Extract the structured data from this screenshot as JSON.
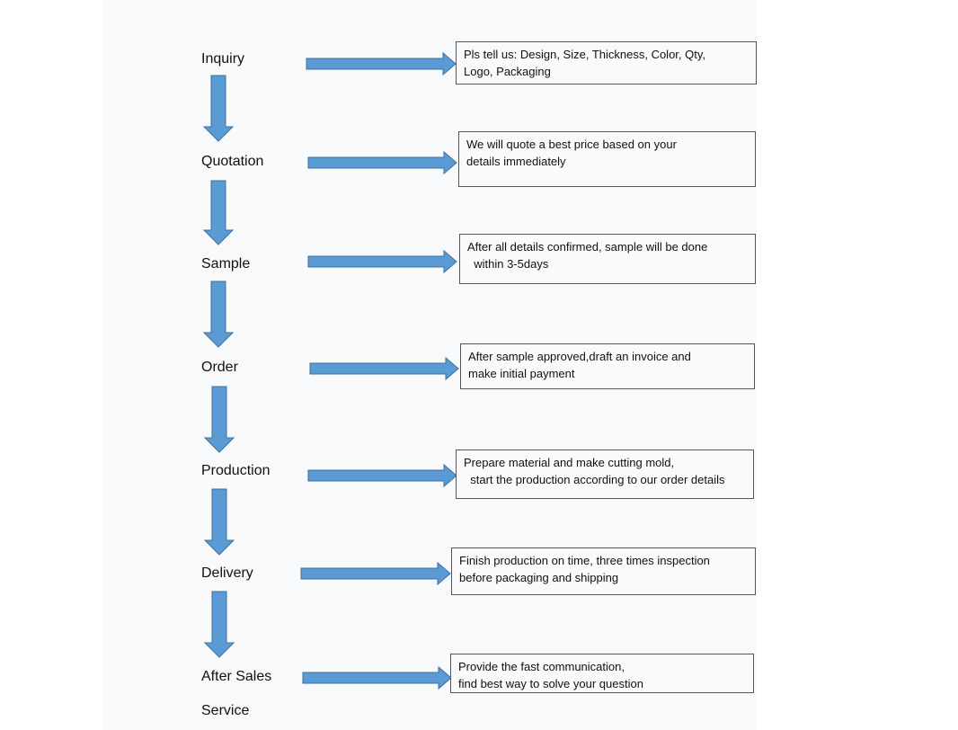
{
  "accent_color": "#5b9bd5",
  "steps": [
    {
      "label": "Inquiry",
      "detail": "Pls tell us: Design, Size, Thickness, Color, Qty,\nLogo, Packaging"
    },
    {
      "label": "Quotation",
      "detail": "We will quote a best price based on your\ndetails immediately"
    },
    {
      "label": "Sample",
      "detail": "After all details confirmed, sample will be done\n  within 3-5days"
    },
    {
      "label": "Order",
      "detail": "After sample approved,draft an invoice and\nmake initial payment"
    },
    {
      "label": "Production",
      "detail": "Prepare material and make cutting mold,\n  start the production according to our order details"
    },
    {
      "label": "Delivery",
      "detail": "Finish production on time, three times inspection\nbefore packaging and shipping"
    },
    {
      "label": "After Sales\n\nService",
      "detail": "Provide the fast communication,\nfind best way to solve your question"
    }
  ]
}
